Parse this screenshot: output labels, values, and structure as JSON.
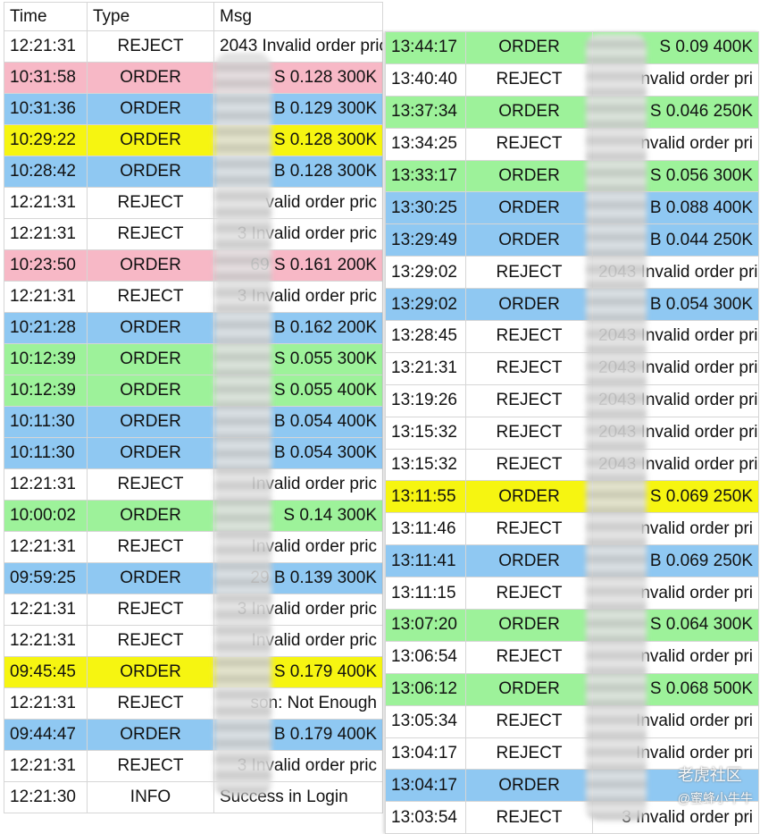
{
  "colors": {
    "pink": "#f7b8c6",
    "blue": "#8fc8f2",
    "yellow": "#f6f511",
    "green": "#9df29a",
    "white": "#ffffff"
  },
  "headers": {
    "time": "Time",
    "type": "Type",
    "msg": "Msg"
  },
  "left_rows": [
    {
      "time": "12:21:31",
      "type": "REJECT",
      "msg": "2043 Invalid order pric",
      "color": "white"
    },
    {
      "time": "10:31:58",
      "type": "ORDER",
      "msg": "S 0.128 300K",
      "color": "pink"
    },
    {
      "time": "10:31:36",
      "type": "ORDER",
      "msg": "B 0.129 300K",
      "color": "blue"
    },
    {
      "time": "10:29:22",
      "type": "ORDER",
      "msg": "S 0.128 300K",
      "color": "yellow"
    },
    {
      "time": "10:28:42",
      "type": "ORDER",
      "msg": "B 0.128 300K",
      "color": "blue"
    },
    {
      "time": "12:21:31",
      "type": "REJECT",
      "msg": "valid order pric",
      "color": "white"
    },
    {
      "time": "12:21:31",
      "type": "REJECT",
      "msg": "3 Invalid order pric",
      "color": "white"
    },
    {
      "time": "10:23:50",
      "type": "ORDER",
      "msg": "69 S 0.161 200K",
      "color": "pink"
    },
    {
      "time": "12:21:31",
      "type": "REJECT",
      "msg": "3 Invalid order pric",
      "color": "white"
    },
    {
      "time": "10:21:28",
      "type": "ORDER",
      "msg": "B 0.162 200K",
      "color": "blue"
    },
    {
      "time": "10:12:39",
      "type": "ORDER",
      "msg": "S 0.055 300K",
      "color": "green"
    },
    {
      "time": "10:12:39",
      "type": "ORDER",
      "msg": "S 0.055 400K",
      "color": "green"
    },
    {
      "time": "10:11:30",
      "type": "ORDER",
      "msg": "B 0.054 400K",
      "color": "blue"
    },
    {
      "time": "10:11:30",
      "type": "ORDER",
      "msg": "B 0.054 300K",
      "color": "blue"
    },
    {
      "time": "12:21:31",
      "type": "REJECT",
      "msg": "Invalid order pric",
      "color": "white"
    },
    {
      "time": "10:00:02",
      "type": "ORDER",
      "msg": "S 0.14 300K",
      "color": "green"
    },
    {
      "time": "12:21:31",
      "type": "REJECT",
      "msg": "Invalid order pric",
      "color": "white"
    },
    {
      "time": "09:59:25",
      "type": "ORDER",
      "msg": "29 B 0.139 300K",
      "color": "blue"
    },
    {
      "time": "12:21:31",
      "type": "REJECT",
      "msg": "3 Invalid order pric",
      "color": "white"
    },
    {
      "time": "12:21:31",
      "type": "REJECT",
      "msg": "Invalid order pric",
      "color": "white"
    },
    {
      "time": "09:45:45",
      "type": "ORDER",
      "msg": "S 0.179 400K",
      "color": "yellow"
    },
    {
      "time": "12:21:31",
      "type": "REJECT",
      "msg": "son: Not Enough",
      "color": "white"
    },
    {
      "time": "09:44:47",
      "type": "ORDER",
      "msg": "B 0.179 400K",
      "color": "blue"
    },
    {
      "time": "12:21:31",
      "type": "REJECT",
      "msg": "3 Invalid order pric",
      "color": "white"
    },
    {
      "time": "12:21:30",
      "type": "INFO",
      "msg": "Success in Login",
      "color": "white"
    }
  ],
  "right_rows": [
    {
      "time": "13:44:17",
      "type": "ORDER",
      "msg": "S 0.09 400K",
      "color": "green"
    },
    {
      "time": "13:40:40",
      "type": "REJECT",
      "msg": "nvalid order pri",
      "color": "white"
    },
    {
      "time": "13:37:34",
      "type": "ORDER",
      "msg": "S 0.046 250K",
      "color": "green"
    },
    {
      "time": "13:34:25",
      "type": "REJECT",
      "msg": "nvalid order pri",
      "color": "white"
    },
    {
      "time": "13:33:17",
      "type": "ORDER",
      "msg": "S 0.056 300K",
      "color": "green"
    },
    {
      "time": "13:30:25",
      "type": "ORDER",
      "msg": "B 0.088 400K",
      "color": "blue"
    },
    {
      "time": "13:29:49",
      "type": "ORDER",
      "msg": "B 0.044 250K",
      "color": "blue"
    },
    {
      "time": "13:29:02",
      "type": "REJECT",
      "msg": "2043 Invalid order pri",
      "color": "white"
    },
    {
      "time": "13:29:02",
      "type": "ORDER",
      "msg": "B 0.054 300K",
      "color": "blue"
    },
    {
      "time": "13:28:45",
      "type": "REJECT",
      "msg": "2043 Invalid order pri",
      "color": "white"
    },
    {
      "time": "13:21:31",
      "type": "REJECT",
      "msg": "2043 Invalid order pri",
      "color": "white"
    },
    {
      "time": "13:19:26",
      "type": "REJECT",
      "msg": "2043 Invalid order pri",
      "color": "white"
    },
    {
      "time": "13:15:32",
      "type": "REJECT",
      "msg": "2043 Invalid order pri",
      "color": "white"
    },
    {
      "time": "13:15:32",
      "type": "REJECT",
      "msg": "2043 Invalid order pri",
      "color": "white"
    },
    {
      "time": "13:11:55",
      "type": "ORDER",
      "msg": "S 0.069 250K",
      "color": "yellow"
    },
    {
      "time": "13:11:46",
      "type": "REJECT",
      "msg": "nvalid order pri",
      "color": "white"
    },
    {
      "time": "13:11:41",
      "type": "ORDER",
      "msg": "B 0.069 250K",
      "color": "blue"
    },
    {
      "time": "13:11:15",
      "type": "REJECT",
      "msg": "nvalid order pri",
      "color": "white"
    },
    {
      "time": "13:07:20",
      "type": "ORDER",
      "msg": "S 0.064 300K",
      "color": "green"
    },
    {
      "time": "13:06:54",
      "type": "REJECT",
      "msg": "nvalid order pri",
      "color": "white"
    },
    {
      "time": "13:06:12",
      "type": "ORDER",
      "msg": "S 0.068 500K",
      "color": "green"
    },
    {
      "time": "13:05:34",
      "type": "REJECT",
      "msg": "Invalid order pri",
      "color": "white"
    },
    {
      "time": "13:04:17",
      "type": "REJECT",
      "msg": "Invalid order pri",
      "color": "white"
    },
    {
      "time": "13:04:17",
      "type": "ORDER",
      "msg": "",
      "color": "blue"
    },
    {
      "time": "13:03:54",
      "type": "REJECT",
      "msg": "3 Invalid order pri",
      "color": "white"
    }
  ],
  "watermark": {
    "main": "老虎社区",
    "sub": "@蜜蜂小牛牛"
  }
}
